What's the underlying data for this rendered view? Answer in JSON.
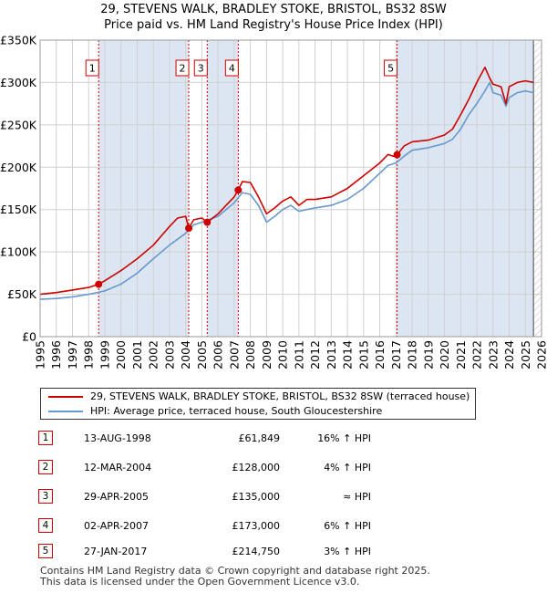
{
  "title_line1": "29, STEVENS WALK, BRADLEY STOKE, BRISTOL, BS32 8SW",
  "title_line2": "Price paid vs. HM Land Registry's House Price Index (HPI)",
  "colors": {
    "property": "#cc0000",
    "hpi": "#6699cc",
    "shade": "#dce6f2",
    "grid": "#d0d0d0"
  },
  "chart_data": {
    "type": "line",
    "title": "29, STEVENS WALK, BRADLEY STOKE, BRISTOL, BS32 8SW — Price paid vs. HM Land Registry's House Price Index (HPI)",
    "xlim": [
      1995,
      2026
    ],
    "ylim": [
      0,
      350000
    ],
    "y_ticks": [
      {
        "value": 0,
        "label": "£0"
      },
      {
        "value": 50000,
        "label": "£50K"
      },
      {
        "value": 100000,
        "label": "£100K"
      },
      {
        "value": 150000,
        "label": "£150K"
      },
      {
        "value": 200000,
        "label": "£200K"
      },
      {
        "value": 250000,
        "label": "£250K"
      },
      {
        "value": 300000,
        "label": "£300K"
      },
      {
        "value": 350000,
        "label": "£350K"
      }
    ],
    "x_ticks": [
      "1995",
      "1996",
      "1997",
      "1998",
      "1999",
      "2000",
      "2001",
      "2002",
      "2003",
      "2004",
      "2005",
      "2006",
      "2007",
      "2008",
      "2009",
      "2010",
      "2011",
      "2012",
      "2013",
      "2014",
      "2015",
      "2016",
      "2017",
      "2018",
      "2019",
      "2020",
      "2021",
      "2022",
      "2023",
      "2024",
      "2025",
      "2026"
    ],
    "shaded_periods": [
      [
        1998.62,
        2004.19
      ],
      [
        2005.33,
        2007.25
      ],
      [
        2017.07,
        2025.5
      ]
    ],
    "future_hatch_from": 2025.5,
    "series": [
      {
        "name": "29, STEVENS WALK, BRADLEY STOKE, BRISTOL, BS32 8SW (terraced house)",
        "x": [
          1995,
          1996,
          1997,
          1998,
          1998.62,
          1999,
          2000,
          2001,
          2002,
          2003,
          2003.5,
          2004,
          2004.19,
          2004.5,
          2005,
          2005.33,
          2006,
          2006.5,
          2007,
          2007.25,
          2007.5,
          2008,
          2008.5,
          2009,
          2009.5,
          2010,
          2010.5,
          2011,
          2011.5,
          2012,
          2013,
          2014,
          2015,
          2016,
          2016.5,
          2017,
          2017.07,
          2017.5,
          2018,
          2019,
          2020,
          2020.5,
          2021,
          2021.5,
          2022,
          2022.5,
          2022.8,
          2023,
          2023.5,
          2023.8,
          2024,
          2024.5,
          2025,
          2025.5
        ],
        "values": [
          50000,
          52000,
          55000,
          58000,
          61849,
          66000,
          78000,
          92000,
          108000,
          130000,
          140000,
          142000,
          128000,
          138000,
          140000,
          135000,
          145000,
          155000,
          165000,
          173000,
          183000,
          182000,
          165000,
          145000,
          152000,
          160000,
          165000,
          155000,
          162000,
          162000,
          165000,
          175000,
          190000,
          205000,
          215000,
          212000,
          214750,
          225000,
          230000,
          232000,
          238000,
          245000,
          262000,
          280000,
          300000,
          318000,
          305000,
          298000,
          295000,
          275000,
          295000,
          300000,
          302000,
          300000
        ]
      },
      {
        "name": "HPI: Average price, terraced house, South Gloucestershire",
        "x": [
          1995,
          1996,
          1997,
          1998,
          1999,
          2000,
          2001,
          2002,
          2003,
          2004,
          2004.5,
          2005,
          2006,
          2007,
          2007.5,
          2008,
          2008.5,
          2009,
          2009.5,
          2010,
          2010.5,
          2011,
          2011.5,
          2012,
          2013,
          2014,
          2015,
          2016,
          2016.5,
          2017,
          2017.5,
          2018,
          2019,
          2020,
          2020.5,
          2021,
          2021.5,
          2022,
          2022.5,
          2022.8,
          2023,
          2023.5,
          2023.8,
          2024,
          2024.5,
          2025,
          2025.5
        ],
        "values": [
          44000,
          45000,
          47000,
          50000,
          54000,
          62000,
          75000,
          92000,
          108000,
          122000,
          132000,
          135000,
          142000,
          158000,
          170000,
          168000,
          155000,
          135000,
          142000,
          150000,
          155000,
          148000,
          150000,
          152000,
          155000,
          162000,
          175000,
          193000,
          202000,
          205000,
          213000,
          220000,
          223000,
          228000,
          233000,
          245000,
          262000,
          275000,
          290000,
          300000,
          288000,
          285000,
          272000,
          282000,
          288000,
          290000,
          288000
        ]
      }
    ],
    "sales": [
      {
        "num": "1",
        "x": 1998.62,
        "price": 61849
      },
      {
        "num": "2",
        "x": 2004.19,
        "price": 128000
      },
      {
        "num": "3",
        "x": 2005.33,
        "price": 135000
      },
      {
        "num": "4",
        "x": 2007.25,
        "price": 173000
      },
      {
        "num": "5",
        "x": 2017.07,
        "price": 214750
      }
    ]
  },
  "legend": {
    "property_label": "29, STEVENS WALK, BRADLEY STOKE, BRISTOL, BS32 8SW (terraced house)",
    "hpi_label": "HPI: Average price, terraced house, South Gloucestershire"
  },
  "sales_table": [
    {
      "num": "1",
      "date": "13-AUG-1998",
      "price": "£61,849",
      "hpi": "16% ↑ HPI"
    },
    {
      "num": "2",
      "date": "12-MAR-2004",
      "price": "£128,000",
      "hpi": "4% ↑ HPI"
    },
    {
      "num": "3",
      "date": "29-APR-2005",
      "price": "£135,000",
      "hpi": "≈ HPI"
    },
    {
      "num": "4",
      "date": "02-APR-2007",
      "price": "£173,000",
      "hpi": "6% ↑ HPI"
    },
    {
      "num": "5",
      "date": "27-JAN-2017",
      "price": "£214,750",
      "hpi": "3% ↑ HPI"
    }
  ],
  "footer_line1": "Contains HM Land Registry data © Crown copyright and database right 2025.",
  "footer_line2": "This data is licensed under the Open Government Licence v3.0."
}
